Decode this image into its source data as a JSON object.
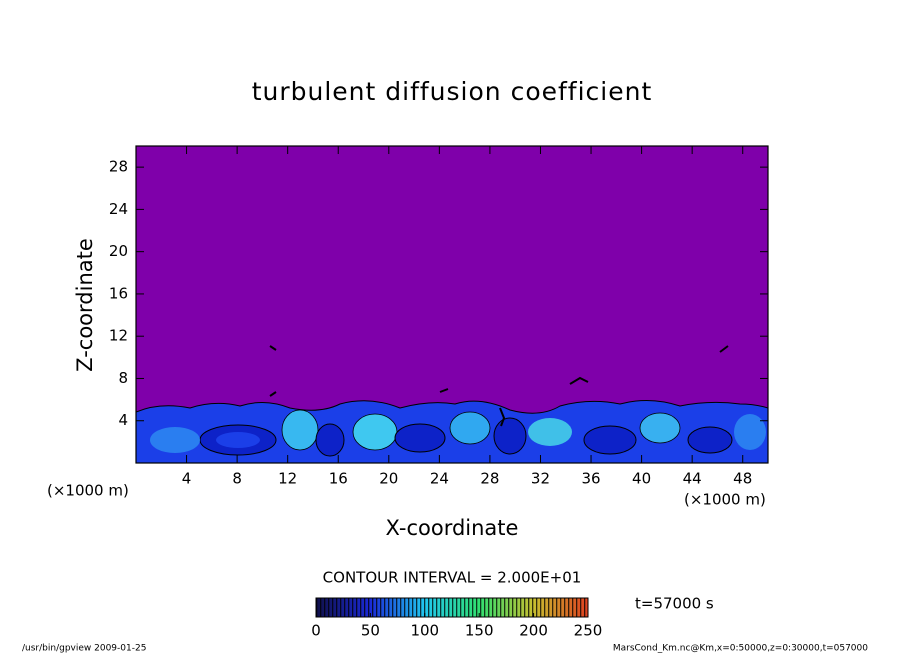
{
  "chart_data": {
    "type": "contour",
    "title": "turbulent diffusion coefficient",
    "xlabel": "X-coordinate",
    "ylabel": "Z-coordinate",
    "x_unit_label": "(×1000 m)",
    "xlim": [
      0,
      50
    ],
    "ylim": [
      0,
      30
    ],
    "xticks": [
      4,
      8,
      12,
      16,
      20,
      24,
      28,
      32,
      36,
      40,
      44,
      48
    ],
    "yticks": [
      4,
      8,
      12,
      16,
      20,
      24,
      28
    ],
    "background_color": "#7f00aa",
    "colorbar": {
      "lim": [
        0,
        250
      ],
      "ticks": [
        0,
        50,
        100,
        150,
        200,
        250
      ],
      "colors": [
        "#10104a",
        "#1a2ad8",
        "#20c8f0",
        "#30e070",
        "#c8c030",
        "#e04020"
      ]
    },
    "contour_interval_label": "CONTOUR INTERVAL = 2.000E+01",
    "time_label": "t=57000 s",
    "footer_left": "/usr/bin/gpview   2009-01-25",
    "footer_right": "MarsCond_Km.nc@Km,x=0:50000,z=0:30000,t=057000"
  }
}
